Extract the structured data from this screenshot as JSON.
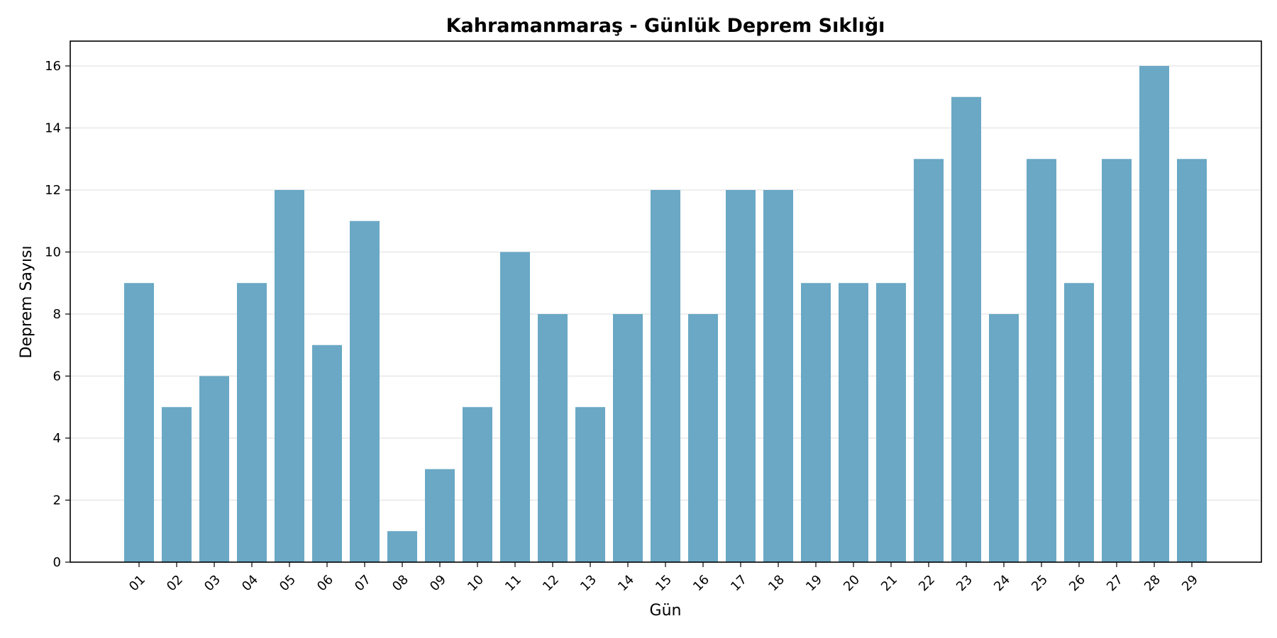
{
  "chart_data": {
    "type": "bar",
    "title": "Kahramanmaraş - Günlük Deprem Sıklığı",
    "xlabel": "Gün",
    "ylabel": "Deprem Sayısı",
    "categories": [
      "01",
      "02",
      "03",
      "04",
      "05",
      "06",
      "07",
      "08",
      "09",
      "10",
      "11",
      "12",
      "13",
      "14",
      "15",
      "16",
      "17",
      "18",
      "19",
      "20",
      "21",
      "22",
      "23",
      "24",
      "25",
      "26",
      "27",
      "28",
      "29"
    ],
    "values": [
      9,
      5,
      6,
      9,
      12,
      7,
      11,
      1,
      3,
      5,
      10,
      8,
      5,
      8,
      12,
      8,
      12,
      12,
      9,
      9,
      9,
      13,
      15,
      8,
      13,
      9,
      13,
      16,
      13
    ],
    "ylim": [
      0,
      16.8
    ],
    "yticks": [
      0,
      2,
      4,
      6,
      8,
      10,
      12,
      14,
      16
    ],
    "grid": "y",
    "legend": "none",
    "bar_color": "#6aa8c5",
    "grid_color": "#e3e3e3"
  }
}
